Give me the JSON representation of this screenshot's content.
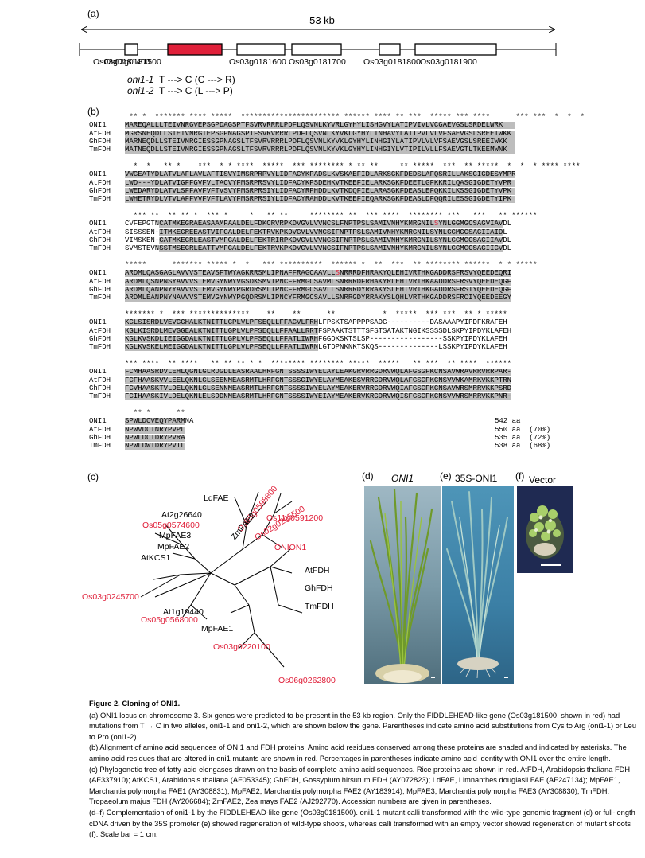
{
  "panel_a": {
    "label": "(a)",
    "span_label": "53 kb",
    "genes": [
      {
        "name": "Os03g0181400",
        "color": "#ffffff"
      },
      {
        "name": "Os03g0181500",
        "color": "#e0203a"
      },
      {
        "name": "Os03g0181600",
        "color": "#ffffff"
      },
      {
        "name": "Os03g0181700",
        "color": "#ffffff"
      },
      {
        "name": "Os03g0181800",
        "color": "#ffffff"
      },
      {
        "name": "Os03g0181900",
        "color": "#ffffff"
      }
    ],
    "alleles": [
      {
        "name": "oni1-1",
        "change": "T ---> C (C ---> R)"
      },
      {
        "name": "oni1-2",
        "change": "T ---> C (L ---> P)"
      }
    ]
  },
  "panel_b": {
    "label": "(b)",
    "blocks": [
      {
        "stars": " ** *  ******* **** *****  *********************** ****** **** ** ***  ***** *** ****      *** ***  *  *  *",
        "rows": [
          {
            "name": "ONI1",
            "seq": "MAREQALLLTEIVNRGVEPSGPDAGSPTFSVRVRRRLPDFLQSVNLKYVRLGYHYLISHGVYLATIPVIVLVCGAEVGSLSRDELWRK"
          },
          {
            "name": "AtFDH",
            "seq": "MGRSNEQDLLSTEIVNRGIEPSGPNAGSPTFSVRVRRRLPDFLQSVNLKYVKLGYHYLINHAVYLATIPVLVLVFSAEVGSLSREEIWKK"
          },
          {
            "name": "GhFDH",
            "seq": "MARNEQDLLSTEIVNRGIESSGPNAGSLTFSVRVRRRLPDFLQSVNLKYVKLGYHYLINHGIYLATIPVLVLVFSAEVGSLSREEIWKK"
          },
          {
            "name": "TmFDH",
            "seq": "MATNEQDLLSTEIVNRGIESSGPNAGSLTFSVRVRRRLPDFLQSVNLKYVKLGYHYLINHGIYLVTIPILVLLFSAEVGTLTKEEMWNK"
          }
        ],
        "shades": [
          [
            0,
            91
          ]
        ]
      },
      {
        "stars": "  *  *   ** *    ***  * * ****  *****  *** ******** * ** **     ** *****  ***  ** *****  *  *  * **** ****",
        "rows": [
          {
            "name": "ONI1",
            "seq": "VWGEATYDLATVLAFLAVLAFTISVYIMSRPRPVYLIDFACYKPADSLKVSKAEFIDLARKSGKFDEDSLAFQSRILLAKSGIGDESYMPR"
          },
          {
            "name": "AtFDH",
            "seq": "LWD---YDLATVIGFFGVFVLTACVYFMSRPRSVYLIDFACYKPSDEHKVTKEEFIELARKSGKFDEETLGFKKRILQASGIGDETYVPR"
          },
          {
            "name": "GhFDH",
            "seq": "LWEDARYDLATVLSFFAVFVFTVSVYFMSRPRSIYLIDFACYRPHDDLKVTKDQFIELARASGKFDEASLEFQKKILKSSGIGDETYVPK"
          },
          {
            "name": "TmFDH",
            "seq": "LWHETRYDLVTVLAFFVVFVFTLAVYFMSRPRSIYLIDFACYRAHDDLKVTKEEFIEQARKSGKFDEASLDFQQRILESSGIGDETYIPK"
          }
        ],
        "shades": [
          [
            0,
            91
          ]
        ]
      },
      {
        "stars": "  *** **  ** ** *  *** *     *   ** **     ******** **  *** ****  ******** ***   ***   ** ******",
        "rows": [
          {
            "name": "ONI1",
            "seq": "CVFEPGTNCATMKEGRAEASAAMFAALDELFDKCRVRPKDVGVLVVNCSLFNPTPSLSAMIVNHYKMRGNILSYNLGGMGCSAGVIAVDL"
          },
          {
            "name": "AtFDH",
            "seq": "SISSSEN-ITMKEGREEASTVIFGALDELFEKTRVKPKDVGVLVVNCSIFNPTPSLSAMIVNHYKMRGNILSYNLGGMGCSAGIIAIDL"
          },
          {
            "name": "GhFDH",
            "seq": "VIMSKEN-CATMKEGRLEASTVMFGALDELFEKTRIRPKDVGVLVVNCSIFNPTPSLSAMIVNHYKMRGNILSYNLGGMGCSAGIIAVDL"
          },
          {
            "name": "TmFDH",
            "seq": "SVMSTEVNSSTMSEGRLEATTVMFGALDELFEKTRVKPKDVGVLVVNCSIFNPTPSLSAMIVNHYKMRGNILSYNLGGMGCSAGIIGVDL"
          }
        ],
        "shades": [
          [
            8,
            88
          ]
        ]
      },
      {
        "stars": "*****      ******* ***** *  *   *** **********  ****** *  **  ***  ** ******** ******  * * *****",
        "rows": [
          {
            "name": "ONI1",
            "seq": "ARDMLQASGAGLAVVVSTEAVSFTWYAGKRRSMLIPNAFFRAGCAAVLLSNRRRDFHRAKYQLEHIVRTHKGADDRSFRSVYQEEDEQRI"
          },
          {
            "name": "AtFDH",
            "seq": "ARDMLQSNPNSYAVVVSTEMVGYNWYVGSDKSMVIPNCFFRMGCSAVMLSNRRRDFRHAKYRLEHIVRTHKAADDRSFRSVYQEEDEQGF"
          },
          {
            "name": "GhFDH",
            "seq": "ARDMLQANPNYYAVVVSTEMVGYNWYPGRDRSMLIPNCFFRMGCSAVLLSNRRRDYRRAKYSLEHIVRTHKGADDRSFRSIYQEEDEQGF"
          },
          {
            "name": "TmFDH",
            "seq": "ARDMLEANPNYNAVVVSTEMVGYNWYPGQDRSMLIPNCYFRMGCSAVLLSNRRGDYRRAKYSLQHLVRTHKGADDRSFRCIYQEEDEEGY"
          }
        ],
        "shades": [
          [
            0,
            90
          ]
        ]
      },
      {
        "stars": "******* *  *** **************    **    **      **           *  *****  *** ***  ** * *****",
        "rows": [
          {
            "name": "ONI1",
            "seq": "KGLSISRDLVEVGGHALKTNITTLGPLVLPFSEQLLFFAGVLFRHLFPSKTSAPPPPSADG----------DASAAAPYIPDFKRAFEH"
          },
          {
            "name": "AtFDH",
            "seq": "KGLKISRDLMEVGGEALKTNITTLGPLVLPFSEQLLFFAALLRRTFSPAAKTSTTTSFSTSATAKTNGIKSSSSDLSKPYIPDYKLAFEH"
          },
          {
            "name": "GhFDH",
            "seq": "KGLKVSKDLIEIGGDALKTNITTLGPLVLPFSEQLLFFATLIWRHFGGDKSKTSLSP-----------------SSKPYIPDYKLAFEH"
          },
          {
            "name": "TmFDH",
            "seq": "KGLKVSKELMEIGGDALKTNITTLGPLVLPFSEQLLFFATLIWRNLGTDPNKNKTSKQS--------------LSSKPYIPDYKLAFEH"
          }
        ],
        "shades": [
          [
            0,
            45
          ]
        ]
      },
      {
        "stars": "*** ****  ** ****   ** ** ** * *  ******** ******** *****  *****   ** ***  ** ****  ******",
        "rows": [
          {
            "name": "ONI1",
            "seq": "FCMHAASRDVLEHLQGNLGLRDGDLEASRAALHRFGNTSSSSIWYELAYLEAKGRVRRGDRVWQLAFGSGFKCNSAVWRAVRRVRRPAR-"
          },
          {
            "name": "AtFDH",
            "seq": "FCFHAASKVVLEELQKNLGLSEENMEASRMTLHRFGNTSSSGIWYELAYMEAKESVRRGDRVWQLAFGSGFKCNSVVWKAMRKVKKPTRN"
          },
          {
            "name": "GhFDH",
            "seq": "FCVHAASKTVLDELQKNLGLSENNMEASRMTLHRFGNTSSSSIWYELAYMEAKERVRRGDRVWQIAFGSGFKCNSAVWRSMRRVKKPSRD"
          },
          {
            "name": "TmFDH",
            "seq": "FCIHAASKIVLDELQKNLELSDDNMEASRMTLHRFGNTSSSSIWYEIAYMEAKERVKRGDRVWQISFGSGFKCNSVVWRSMRRVKKPNR-"
          }
        ],
        "shades": [
          [
            0,
            90
          ]
        ]
      },
      {
        "stars": "  ** *      **",
        "rows": [
          {
            "name": "ONI1",
            "seq": "SPWLDCVEQYPARMNA",
            "suffix": "542 aa"
          },
          {
            "name": "AtFDH",
            "seq": "NPWVDCINRYPVPL",
            "suffix": "550 aa  (70%)"
          },
          {
            "name": "GhFDH",
            "seq": "NPWLDCIDRYPVRA",
            "suffix": "535 aa  (72%)"
          },
          {
            "name": "TmFDH",
            "seq": "NPWLDWIDRYPVTL",
            "suffix": "538 aa  (68%)"
          }
        ],
        "shades": [
          [
            0,
            14
          ]
        ]
      }
    ]
  },
  "panel_c": {
    "label": "(c)",
    "taxa": [
      {
        "name": "LdFAE",
        "color": "#000000"
      },
      {
        "name": "At2g26640",
        "color": "#000000"
      },
      {
        "name": "Os05g0574600",
        "color": "#e0203a"
      },
      {
        "name": "MpFAE3",
        "color": "#000000"
      },
      {
        "name": "MpFAE2",
        "color": "#000000"
      },
      {
        "name": "AtKCS1",
        "color": "#000000"
      },
      {
        "name": "Os03g0245700",
        "color": "#e0203a"
      },
      {
        "name": "At1g19440",
        "color": "#000000"
      },
      {
        "name": "Os05g0568000",
        "color": "#e0203a"
      },
      {
        "name": "MpFAE1",
        "color": "#000000"
      },
      {
        "name": "Os03g0220100",
        "color": "#e0203a"
      },
      {
        "name": "Os06g0262800",
        "color": "#e0203a"
      },
      {
        "name": "TmFDH",
        "color": "#000000"
      },
      {
        "name": "GhFDH",
        "color": "#000000"
      },
      {
        "name": "AtFDH",
        "color": "#000000"
      },
      {
        "name": "ONION1",
        "color": "#e0203a"
      },
      {
        "name": "Os02g0205500",
        "color": "#e0203a"
      },
      {
        "name": "Os11g0591200",
        "color": "#e0203a"
      },
      {
        "name": "Os05g0598800",
        "color": "#e0203a"
      },
      {
        "name": "ZmFAE2",
        "color": "#000000"
      }
    ]
  },
  "panel_d": {
    "label": "(d)",
    "title": "ONI1"
  },
  "panel_e": {
    "label": "(e)",
    "title": "35S-ONI1"
  },
  "panel_f": {
    "label": "(f)",
    "title": "Vector"
  },
  "caption": {
    "title": "Figure 2. Cloning of ONI1.",
    "paragraphs": [
      "(a) ONI1 locus on chromosome 3. Six genes were predicted to be present in the 53 kb region. Only the FIDDLEHEAD-like gene (Os03g181500, shown in red) had mutations from T → C in two alleles, oni1-1 and oni1-2, which are shown below the gene. Parentheses indicate amino acid substitutions from Cys to Arg (oni1-1) or Leu to Pro (oni1-2).",
      "(b) Alignment of amino acid sequences of ONI1 and FDH proteins. Amino acid residues conserved among these proteins are shaded and indicated by asterisks. The amino acid residues that are altered in oni1 mutants are shown in red. Percentages in parentheses indicate amino acid identity with ONI1 over the entire length.",
      "(c) Phylogenetic tree of fatty acid elongases drawn on the basis of complete amino acid sequences. Rice proteins are shown in red. AtFDH, Arabidopsis thaliana FDH (AF337910); AtKCS1, Arabidopsis thaliana (AF053345); GhFDH, Gossypium hirsutum FDH (AY072823); LdFAE, Limnanthes douglasii FAE (AF247134); MpFAE1, Marchantia polymorpha FAE1 (AY308831); MpFAE2, Marchantia polymorpha FAE2 (AY183914); MpFAE3, Marchantia polymorpha FAE3 (AY308830); TmFDH, Tropaeolum majus FDH (AY206684); ZmFAE2, Zea mays FAE2 (AJ292770). Accession numbers are given in parentheses.",
      "(d–f) Complementation of oni1-1 by the FIDDLEHEAD-like gene (Os03g0181500). oni1-1 mutant calli transformed with the wild-type genomic fragment (d) or full-length cDNA driven by the 35S promoter (e) showed regeneration of wild-type shoots, whereas calli transformed with an empty vector showed regeneration of mutant shoots (f). Scale bar = 1 cm."
    ]
  }
}
